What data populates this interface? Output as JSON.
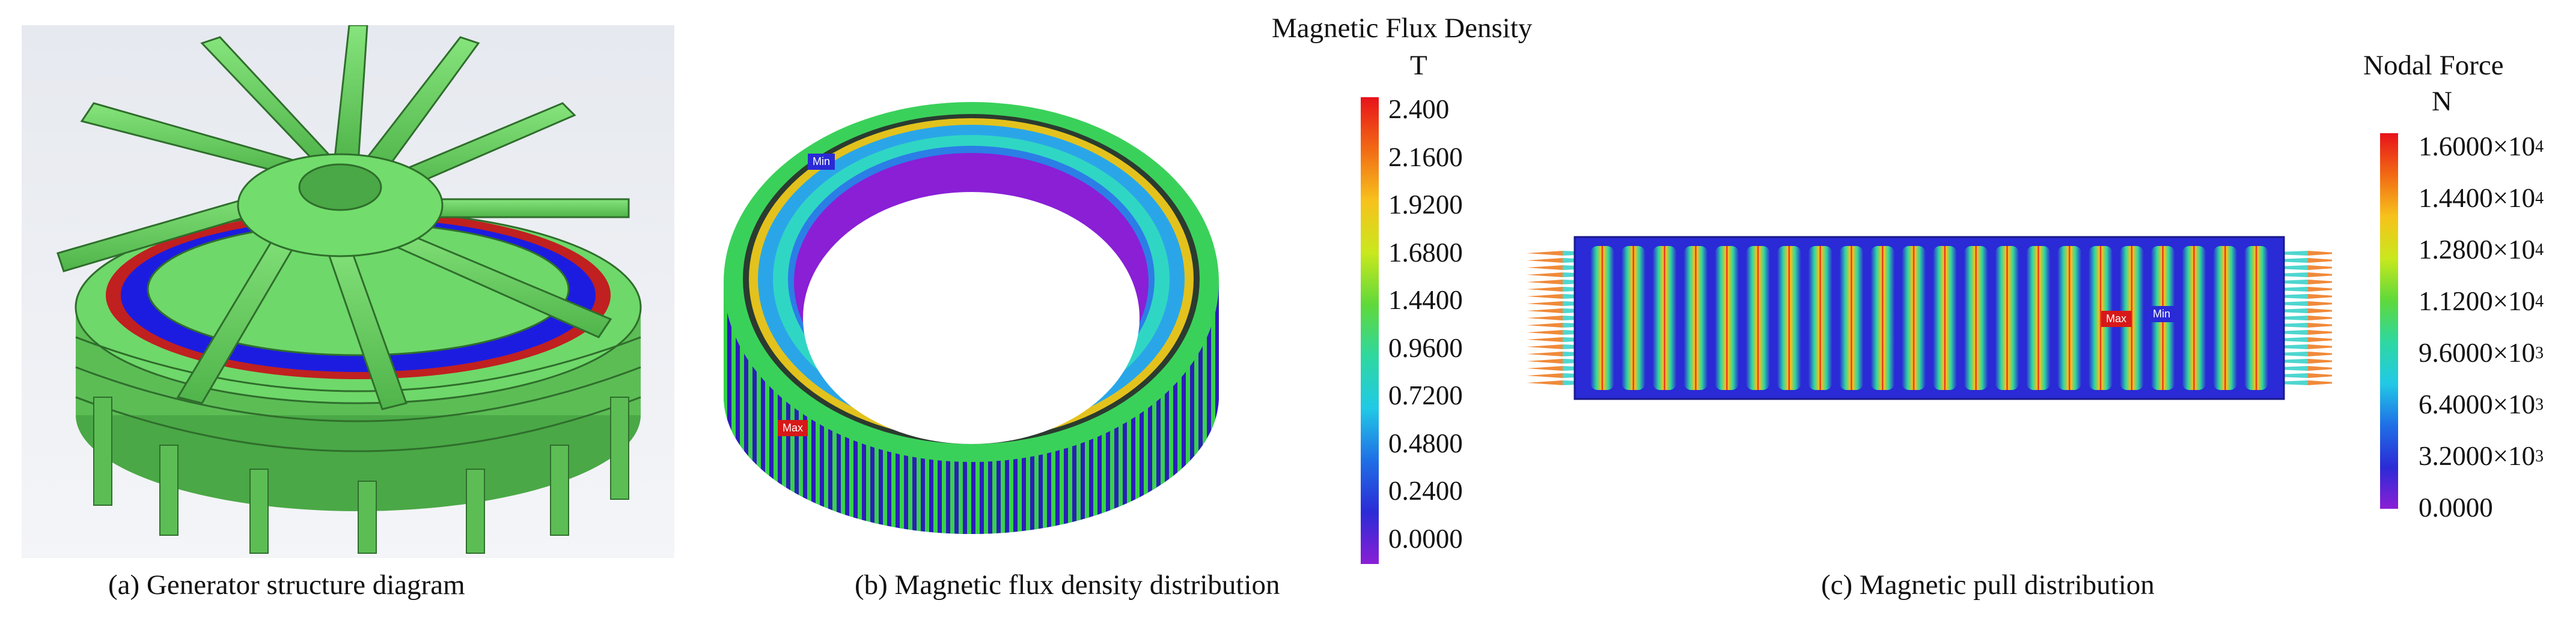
{
  "panels": {
    "a": {
      "caption": "(a) Generator structure diagram"
    },
    "b": {
      "caption": "(b) Magnetic flux density distribution",
      "legend_title": "Magnetic Flux Density",
      "legend_unit": "T",
      "ticks": [
        "2.400",
        "2.1600",
        "1.9200",
        "1.6800",
        "1.4400",
        "0.9600",
        "0.7200",
        "0.4800",
        "0.2400",
        "0.0000"
      ],
      "max_tag": "Max",
      "min_tag": "Min"
    },
    "c": {
      "caption": "(c) Magnetic pull distribution",
      "legend_title": "Nodal Force",
      "legend_unit": "N",
      "ticks": [
        {
          "mant": "1.6000×10",
          "exp": "4"
        },
        {
          "mant": "1.4400×10",
          "exp": "4"
        },
        {
          "mant": "1.2800×10",
          "exp": "4"
        },
        {
          "mant": "1.1200×10",
          "exp": "4"
        },
        {
          "mant": "9.6000×10",
          "exp": "3"
        },
        {
          "mant": "6.4000×10",
          "exp": "3"
        },
        {
          "mant": "3.2000×10",
          "exp": "3"
        },
        {
          "mant": "0.0000",
          "exp": ""
        }
      ],
      "max_tag": "Max",
      "min_tag": "Min"
    }
  },
  "colors": {
    "rainbow": [
      "#e8121a",
      "#f26a14",
      "#f7c21c",
      "#c9e81d",
      "#5fd93a",
      "#2ed8a0",
      "#21c9e6",
      "#1f6fe6",
      "#2b2bd6",
      "#8a1fd6"
    ],
    "model_green": "#6fd86a",
    "model_bg": "#dfe3ea"
  }
}
